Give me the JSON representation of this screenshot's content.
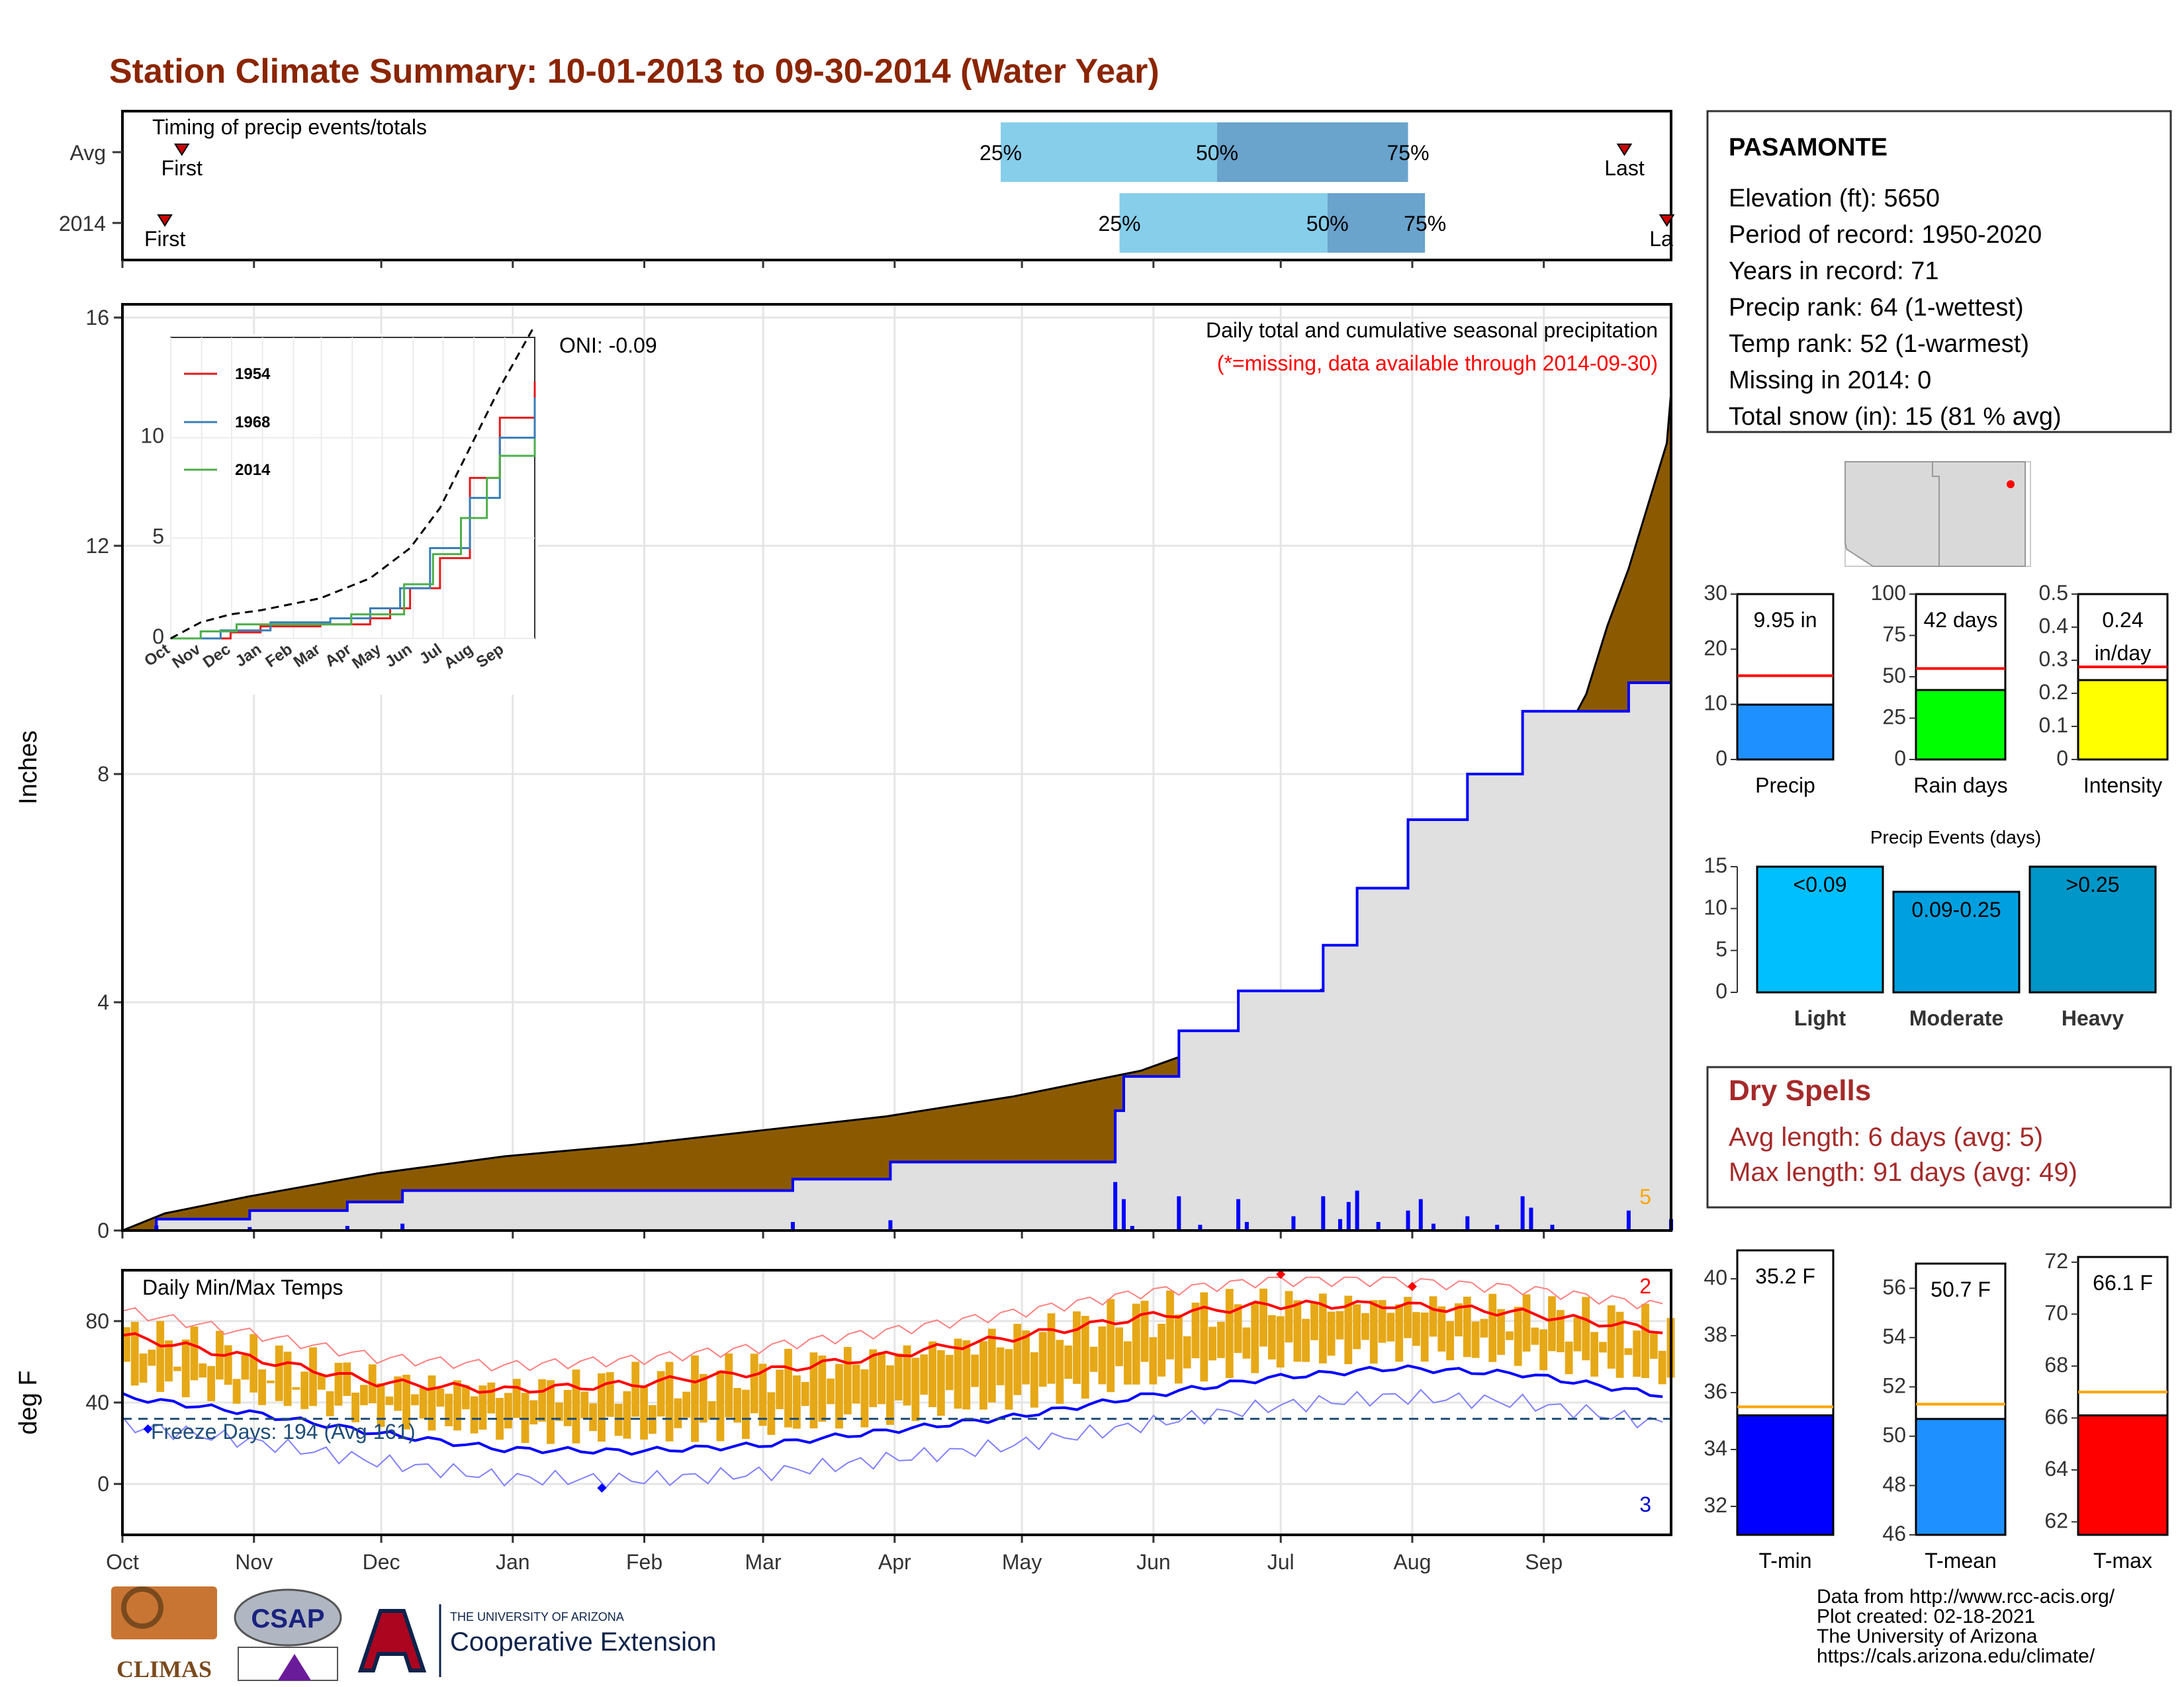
{
  "title": "Station Climate Summary: 10-01-2013 to 09-30-2014 (Water Year)",
  "colors": {
    "title": "#8b2500",
    "brown": "#8b5a00",
    "gray_fill": "#e0e0e0",
    "blue_line": "#0000ff",
    "gold_bars": "#e6a817",
    "red": "#ff0000",
    "light_blue_box": "#87ceeb",
    "mid_blue_box": "#6aa3cc",
    "dry_spell": "#a52a2a"
  },
  "timing_panel": {
    "title": "Timing of precip events/totals",
    "rows": [
      {
        "label": "Avg",
        "first_label": "First",
        "last_label": "Last",
        "first_day": 14,
        "last_day": 354,
        "q25": 207,
        "q50": 258,
        "q75": 303,
        "q25_label": "25%",
        "q50_label": "50%",
        "q75_label": "75%"
      },
      {
        "label": "2014",
        "first_label": "First",
        "last_label": "La",
        "first_day": 10,
        "last_day": 364,
        "q25": 235,
        "q50": 284,
        "q75": 307,
        "q25_label": "25%",
        "q50_label": "50%",
        "q75_label": "75%"
      }
    ]
  },
  "chart_data": [
    {
      "type": "area",
      "name": "main-precip",
      "title": "Daily total and cumulative seasonal precipitation",
      "subtitle": "(*=missing, data available through 2014-09-30)",
      "ylabel": "Inches",
      "ylim": [
        0,
        16
      ],
      "yticks": [
        0,
        4,
        8,
        12,
        16
      ],
      "oni_label": "ONI: -0.09",
      "corner_count": "5",
      "avg_cumulative": [
        [
          0,
          0
        ],
        [
          10,
          0.3
        ],
        [
          30,
          0.6
        ],
        [
          60,
          1.0
        ],
        [
          90,
          1.3
        ],
        [
          120,
          1.5
        ],
        [
          150,
          1.75
        ],
        [
          180,
          2.0
        ],
        [
          210,
          2.35
        ],
        [
          240,
          2.8
        ],
        [
          255,
          3.2
        ],
        [
          270,
          3.8
        ],
        [
          285,
          4.3
        ],
        [
          300,
          4.9
        ],
        [
          315,
          6.0
        ],
        [
          330,
          7.3
        ],
        [
          345,
          9.4
        ],
        [
          350,
          10.6
        ],
        [
          355,
          11.6
        ],
        [
          364,
          13.8
        ],
        [
          365,
          14.7
        ]
      ],
      "cumulative_2014": [
        [
          0,
          0
        ],
        [
          8,
          0
        ],
        [
          8,
          0.2
        ],
        [
          30,
          0.2
        ],
        [
          30,
          0.35
        ],
        [
          53,
          0.35
        ],
        [
          53,
          0.5
        ],
        [
          66,
          0.5
        ],
        [
          66,
          0.7
        ],
        [
          158,
          0.7
        ],
        [
          158,
          0.9
        ],
        [
          181,
          0.9
        ],
        [
          181,
          1.2
        ],
        [
          234,
          1.2
        ],
        [
          234,
          2.1
        ],
        [
          236,
          2.1
        ],
        [
          236,
          2.7
        ],
        [
          249,
          2.7
        ],
        [
          249,
          3.5
        ],
        [
          263,
          3.5
        ],
        [
          263,
          4.2
        ],
        [
          283,
          4.2
        ],
        [
          283,
          5.0
        ],
        [
          291,
          5.0
        ],
        [
          291,
          6.0
        ],
        [
          303,
          6.0
        ],
        [
          303,
          7.2
        ],
        [
          317,
          7.2
        ],
        [
          317,
          8.0
        ],
        [
          330,
          8.0
        ],
        [
          330,
          9.1
        ],
        [
          355,
          9.1
        ],
        [
          355,
          9.6
        ],
        [
          365,
          9.6
        ],
        [
          365,
          9.95
        ]
      ],
      "daily_bars": [
        [
          8,
          0.09
        ],
        [
          30,
          0.06
        ],
        [
          53,
          0.08
        ],
        [
          66,
          0.12
        ],
        [
          158,
          0.15
        ],
        [
          181,
          0.18
        ],
        [
          234,
          0.85
        ],
        [
          236,
          0.55
        ],
        [
          238,
          0.08
        ],
        [
          249,
          0.6
        ],
        [
          254,
          0.1
        ],
        [
          263,
          0.55
        ],
        [
          265,
          0.15
        ],
        [
          276,
          0.25
        ],
        [
          283,
          0.6
        ],
        [
          287,
          0.2
        ],
        [
          289,
          0.5
        ],
        [
          291,
          0.7
        ],
        [
          296,
          0.15
        ],
        [
          303,
          0.35
        ],
        [
          306,
          0.55
        ],
        [
          309,
          0.12
        ],
        [
          317,
          0.25
        ],
        [
          324,
          0.1
        ],
        [
          330,
          0.6
        ],
        [
          332,
          0.4
        ],
        [
          337,
          0.1
        ],
        [
          355,
          0.35
        ],
        [
          365,
          0.2
        ]
      ],
      "x_ticks": [
        "Oct",
        "Nov",
        "Dec",
        "Jan",
        "Feb",
        "Mar",
        "Apr",
        "May",
        "Jun",
        "Jul",
        "Aug",
        "Sep"
      ]
    },
    {
      "type": "line",
      "name": "inset-analog-years",
      "ylim": [
        0,
        15
      ],
      "yticks": [
        0,
        5,
        10
      ],
      "x_ticks": [
        "Oct",
        "Nov",
        "Dec",
        "Jan",
        "Feb",
        "Mar",
        "Apr",
        "May",
        "Jun",
        "Jul",
        "Aug",
        "Sep"
      ],
      "series": [
        {
          "name": "1954",
          "color": "#e41a1c",
          "values": [
            [
              0,
              0
            ],
            [
              60,
              0.3
            ],
            [
              90,
              0.6
            ],
            [
              150,
              0.7
            ],
            [
              200,
              1.0
            ],
            [
              220,
              1.5
            ],
            [
              240,
              2.5
            ],
            [
              270,
              4.0
            ],
            [
              300,
              8.0
            ],
            [
              330,
              11.0
            ],
            [
              365,
              12.8
            ]
          ]
        },
        {
          "name": "1968",
          "color": "#377eb8",
          "values": [
            [
              0,
              0
            ],
            [
              50,
              0.4
            ],
            [
              100,
              0.8
            ],
            [
              160,
              1.0
            ],
            [
              200,
              1.5
            ],
            [
              230,
              2.5
            ],
            [
              260,
              4.5
            ],
            [
              300,
              7.0
            ],
            [
              330,
              10.0
            ],
            [
              365,
              12.0
            ]
          ]
        },
        {
          "name": "2014",
          "color": "#4daf4a",
          "values": [
            [
              0,
              0
            ],
            [
              30,
              0.35
            ],
            [
              66,
              0.7
            ],
            [
              181,
              1.2
            ],
            [
              234,
              2.7
            ],
            [
              263,
              4.2
            ],
            [
              291,
              6.0
            ],
            [
              317,
              8.0
            ],
            [
              330,
              9.1
            ],
            [
              365,
              9.95
            ]
          ]
        },
        {
          "name": "avg",
          "color": "#000000",
          "values": [
            [
              0,
              0
            ],
            [
              30,
              0.8
            ],
            [
              60,
              1.2
            ],
            [
              90,
              1.4
            ],
            [
              150,
              2.0
            ],
            [
              200,
              3.0
            ],
            [
              240,
              4.5
            ],
            [
              270,
              6.5
            ],
            [
              300,
              9.5
            ],
            [
              330,
              12.5
            ],
            [
              365,
              15.6
            ]
          ]
        }
      ]
    },
    {
      "type": "bar",
      "name": "temp-panel",
      "title": "Daily Min/Max Temps",
      "ylabel": "deg F",
      "ylim": [
        -25,
        105
      ],
      "yticks": [
        0,
        40,
        80
      ],
      "freeze_label": "Freeze Days: 194 (Avg 161)",
      "freeze_line": 32,
      "record_high_count": "2",
      "record_low_count": "3",
      "avg_max": [
        [
          0,
          73
        ],
        [
          30,
          62
        ],
        [
          60,
          50
        ],
        [
          90,
          46
        ],
        [
          120,
          49
        ],
        [
          150,
          55
        ],
        [
          180,
          63
        ],
        [
          210,
          72
        ],
        [
          240,
          82
        ],
        [
          270,
          88
        ],
        [
          300,
          88
        ],
        [
          330,
          84
        ],
        [
          365,
          75
        ]
      ],
      "avg_min": [
        [
          0,
          43
        ],
        [
          30,
          35
        ],
        [
          60,
          25
        ],
        [
          90,
          17
        ],
        [
          120,
          16
        ],
        [
          150,
          19
        ],
        [
          180,
          26
        ],
        [
          210,
          33
        ],
        [
          240,
          43
        ],
        [
          270,
          52
        ],
        [
          300,
          57
        ],
        [
          330,
          54
        ],
        [
          365,
          43
        ]
      ],
      "x_ticks": [
        "Oct",
        "Nov",
        "Dec",
        "Jan",
        "Feb",
        "Mar",
        "Apr",
        "May",
        "Jun",
        "Jul",
        "Aug",
        "Sep"
      ]
    },
    {
      "type": "bar",
      "name": "precip-gauge",
      "categories": [
        "Precip"
      ],
      "values": [
        9.95
      ],
      "ylim": [
        0,
        30
      ],
      "yticks": [
        0,
        10,
        20,
        30
      ],
      "avg": 15.2,
      "label": "9.95 in",
      "color": "#1e90ff"
    },
    {
      "type": "bar",
      "name": "raindays-gauge",
      "categories": [
        "Rain days"
      ],
      "values": [
        42
      ],
      "ylim": [
        0,
        100
      ],
      "yticks": [
        0,
        25,
        50,
        75,
        100
      ],
      "avg": 55,
      "label": "42 days",
      "color": "#00ff00"
    },
    {
      "type": "bar",
      "name": "intensity-gauge",
      "categories": [
        "Intensity"
      ],
      "values": [
        0.24
      ],
      "ylim": [
        0,
        0.5
      ],
      "yticks": [
        0.0,
        0.1,
        0.2,
        0.3,
        0.4,
        0.5
      ],
      "avg": 0.28,
      "label": "0.24",
      "label2": "in/day",
      "color": "#ffff00"
    },
    {
      "type": "bar",
      "name": "precip-events",
      "title": "Precip Events (days)",
      "categories": [
        "Light",
        "Moderate",
        "Heavy"
      ],
      "values": [
        15,
        12,
        15
      ],
      "bar_labels": [
        "<0.09",
        "0.09-0.25",
        ">0.25"
      ],
      "ylim": [
        0,
        15
      ],
      "yticks": [
        0,
        5,
        10,
        15
      ],
      "colors": [
        "#00bfff",
        "#00a0e0",
        "#0096c7"
      ]
    },
    {
      "type": "bar",
      "name": "tmin-gauge",
      "categories": [
        "T-min"
      ],
      "values": [
        35.2
      ],
      "ylim": [
        31,
        41
      ],
      "yticks": [
        32,
        34,
        36,
        38,
        40
      ],
      "avg": 35.5,
      "label": "35.2 F",
      "color": "#0000ff"
    },
    {
      "type": "bar",
      "name": "tmean-gauge",
      "categories": [
        "T-mean"
      ],
      "values": [
        50.7
      ],
      "ylim": [
        46,
        57
      ],
      "yticks": [
        46,
        48,
        50,
        52,
        54,
        56
      ],
      "avg": 51.3,
      "label": "50.7 F",
      "color": "#1e90ff"
    },
    {
      "type": "bar",
      "name": "tmax-gauge",
      "categories": [
        "T-max"
      ],
      "values": [
        66.1
      ],
      "ylim": [
        61.5,
        72.2
      ],
      "yticks": [
        62,
        64,
        66,
        68,
        70,
        72
      ],
      "avg": 67,
      "label": "66.1 F",
      "color": "#ff0000"
    }
  ],
  "station": {
    "name": "PASAMONTE",
    "lines": [
      "Elevation (ft): 5650",
      "Period of record: 1950-2020",
      "Years in record: 71",
      "Precip rank: 64 (1-wettest)",
      "Temp rank: 52 (1-warmest)",
      "Missing in 2014: 0",
      "Total snow (in): 15 (81 % avg)"
    ]
  },
  "dry_spells": {
    "title": "Dry Spells",
    "avg": "Avg length: 6 days (avg: 5)",
    "max": "Max length: 91 days (avg: 49)"
  },
  "footer": {
    "lines": [
      "Data from http://www.rcc-acis.org/",
      "Plot created: 02-18-2021",
      "The University of Arizona",
      "https://cals.arizona.edu/climate/"
    ],
    "climas": "CLIMAS",
    "csap": "CSAP",
    "ua_small": "THE UNIVERSITY OF ARIZONA",
    "ua_big": "Cooperative Extension"
  }
}
